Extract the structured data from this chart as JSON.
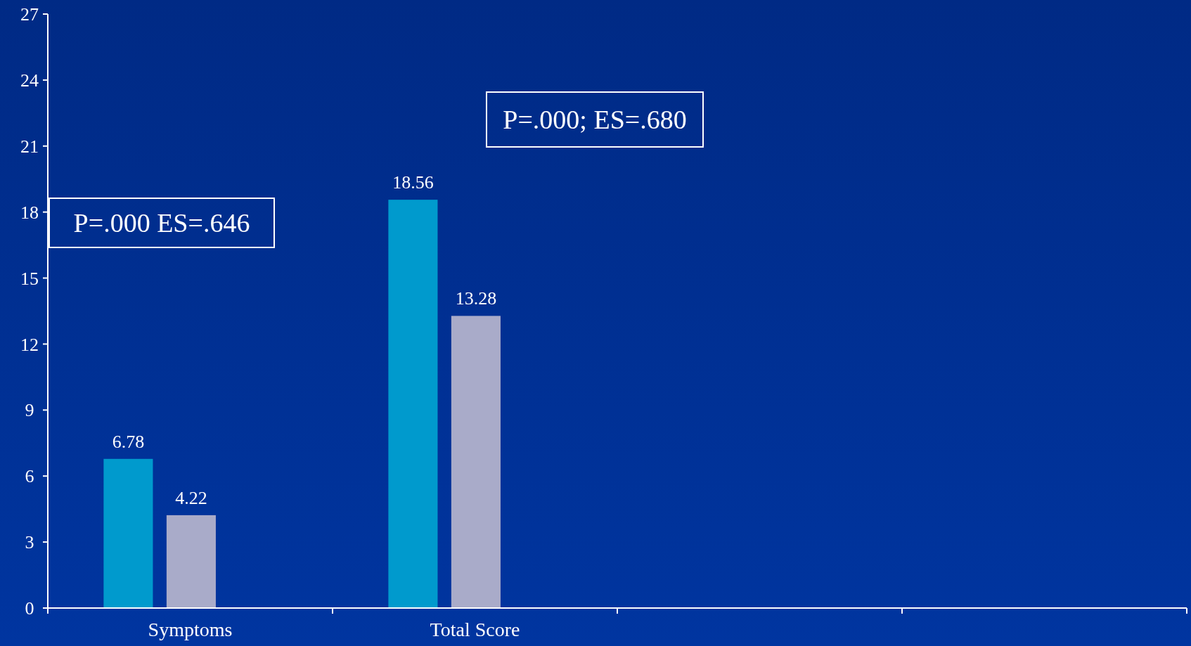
{
  "chart_data": {
    "type": "bar",
    "categories": [
      "Symptoms",
      "Total Score",
      null,
      null
    ],
    "series": [
      {
        "color": "#009acd",
        "values": [
          6.78,
          18.56,
          null,
          null
        ]
      },
      {
        "color": "#a9abc9",
        "values": [
          4.22,
          13.28,
          null,
          null
        ]
      }
    ],
    "ylim": [
      0,
      27
    ],
    "yticks": [
      0,
      3,
      6,
      9,
      12,
      15,
      18,
      21,
      24,
      27
    ],
    "grid": false,
    "data_labels": true,
    "annotations": [
      "P=.000 ES=.646",
      "P=.000; ES=.680"
    ]
  }
}
